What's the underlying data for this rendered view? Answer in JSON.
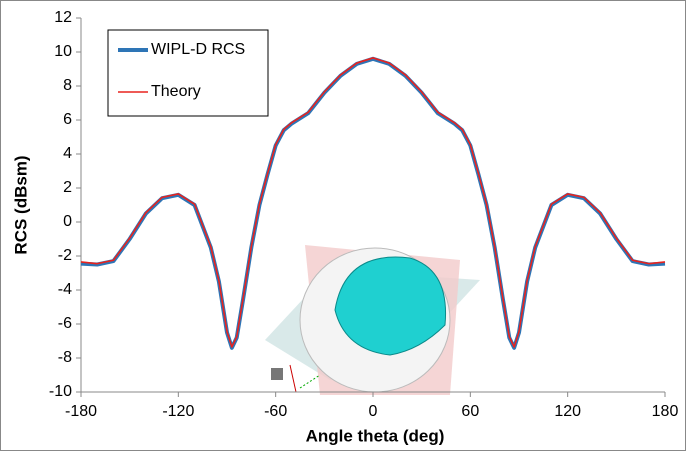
{
  "chart_data": {
    "type": "line",
    "x_label": "Angle theta (deg)",
    "y_label": "RCS (dBsm)",
    "x": [
      -180,
      -170,
      -160,
      -150,
      -140,
      -130,
      -120,
      -110,
      -100,
      -95,
      -90,
      -87,
      -84,
      -80,
      -75,
      -70,
      -65,
      -60,
      -55,
      -50,
      -45,
      -40,
      -35,
      -30,
      -20,
      -10,
      0,
      10,
      20,
      30,
      35,
      40,
      45,
      50,
      55,
      60,
      65,
      70,
      75,
      80,
      84,
      87,
      90,
      95,
      100,
      110,
      120,
      130,
      140,
      150,
      160,
      170,
      180
    ],
    "series": [
      {
        "name": "WIPL-D RCS",
        "color": "#2e75b6",
        "values": [
          -2.45,
          -2.5,
          -2.3,
          -1.0,
          0.5,
          1.4,
          1.6,
          1.0,
          -1.5,
          -3.5,
          -6.5,
          -7.4,
          -6.8,
          -4.5,
          -1.5,
          1.0,
          2.8,
          4.5,
          5.4,
          5.8,
          6.1,
          6.4,
          7.0,
          7.6,
          8.6,
          9.3,
          9.6,
          9.3,
          8.6,
          7.6,
          7.0,
          6.4,
          6.1,
          5.8,
          5.4,
          4.5,
          2.8,
          1.0,
          -1.5,
          -4.5,
          -6.8,
          -7.4,
          -6.5,
          -3.5,
          -1.5,
          1.0,
          1.6,
          1.4,
          0.5,
          -1.0,
          -2.3,
          -2.5,
          -2.45
        ]
      },
      {
        "name": "Theory",
        "color": "#e8231e",
        "values": [
          -2.35,
          -2.45,
          -2.25,
          -0.95,
          0.55,
          1.45,
          1.65,
          1.05,
          -1.45,
          -3.45,
          -6.45,
          -7.35,
          -6.75,
          -4.45,
          -1.45,
          1.05,
          2.85,
          4.55,
          5.45,
          5.85,
          6.15,
          6.45,
          7.05,
          7.65,
          8.65,
          9.35,
          9.65,
          9.35,
          8.65,
          7.65,
          7.05,
          6.45,
          6.15,
          5.85,
          5.45,
          4.55,
          2.85,
          1.05,
          -1.45,
          -4.45,
          -6.75,
          -7.35,
          -6.45,
          -3.45,
          -1.45,
          1.05,
          1.65,
          1.45,
          0.55,
          -0.95,
          -2.25,
          -2.45,
          -2.35
        ]
      }
    ],
    "xlim": [
      -180,
      180
    ],
    "xticks": [
      -180,
      -120,
      -60,
      0,
      60,
      120,
      180
    ],
    "ylim": [
      -10,
      12
    ],
    "yticks": [
      -10,
      -8,
      -6,
      -4,
      -2,
      0,
      2,
      4,
      6,
      8,
      10,
      12
    ],
    "legend": "upper left"
  }
}
